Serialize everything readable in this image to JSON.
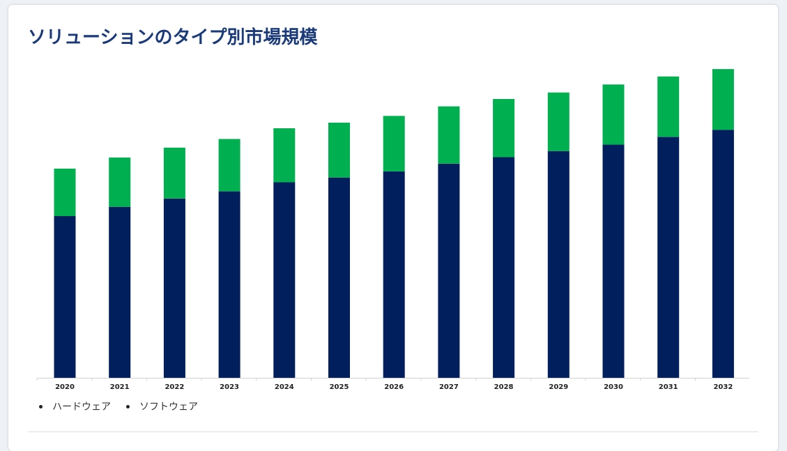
{
  "title": "ソリューションのタイプ別市場規模",
  "colors": {
    "hardware": "#001f5c",
    "software": "#00b050",
    "title": "#1a3a7a"
  },
  "legend": [
    "ハードウェア",
    "ソフトウェア"
  ],
  "chart_data": {
    "type": "bar",
    "stacked": true,
    "title": "ソリューションのタイプ別市場規模",
    "xlabel": "",
    "ylabel": "",
    "ylim": [
      0,
      100
    ],
    "grid": false,
    "legend_position": "bottom-left",
    "categories": [
      "2020",
      "2021",
      "2022",
      "2023",
      "2024",
      "2025",
      "2026",
      "2027",
      "2028",
      "2029",
      "2030",
      "2031",
      "2032"
    ],
    "series": [
      {
        "name": "ハードウェア",
        "color": "#001f5c",
        "values": [
          52.5,
          55.5,
          58.2,
          60.5,
          63.5,
          65.0,
          67.0,
          69.5,
          71.6,
          73.6,
          75.7,
          78.2,
          80.5
        ]
      },
      {
        "name": "ソフトウェア",
        "color": "#00b050",
        "values": [
          15.4,
          16.0,
          16.5,
          17.0,
          17.5,
          17.8,
          18.0,
          18.6,
          18.9,
          19.0,
          19.5,
          19.6,
          19.7
        ]
      }
    ]
  }
}
